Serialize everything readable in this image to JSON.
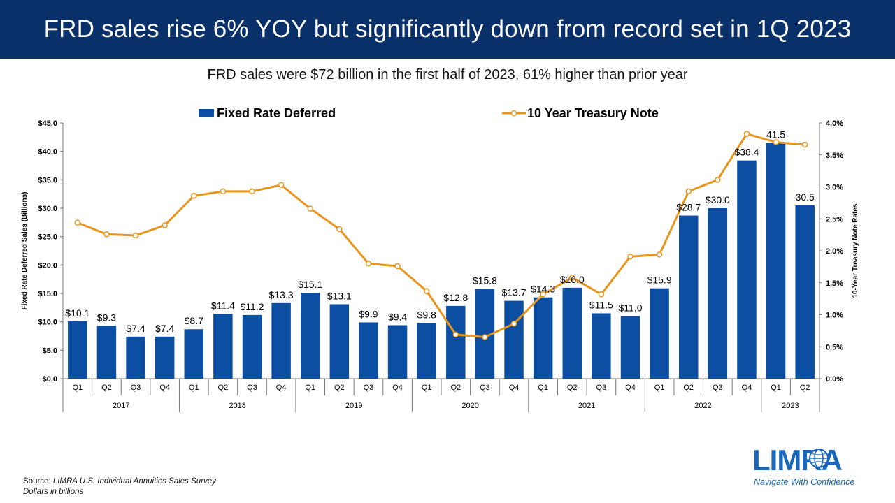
{
  "banner_title": "FRD sales rise 6% YOY but significantly down from record set in 1Q 2023",
  "subtitle": "FRD sales were $72 billion in the first half of 2023, 61% higher than prior year",
  "source": {
    "prefix": "Source: ",
    "name": "LIMRA U.S. Individual Annuities Sales Survey",
    "note": "Dollars in billions"
  },
  "logo": {
    "wordmark": "LIMRA",
    "tagline": "Navigate With Confidence"
  },
  "colors": {
    "banner": "#0a3069",
    "bar": "#0b4ea2",
    "line": "#e8951e",
    "logo": "#1a66b8"
  },
  "chart_data": {
    "type": "bar",
    "title": "",
    "ylabel": "Fixed Rate Deferred Sales (Billions)",
    "y2label": "10-Year Treasury Note Rates",
    "ylim": [
      0,
      45
    ],
    "y2lim": [
      0,
      4
    ],
    "y_ticks": [
      "$0.0",
      "$5.0",
      "$10.0",
      "$15.0",
      "$20.0",
      "$25.0",
      "$30.0",
      "$35.0",
      "$40.0",
      "$45.0"
    ],
    "y2_ticks": [
      "0.0%",
      "0.5%",
      "1.0%",
      "1.5%",
      "2.0%",
      "2.5%",
      "3.0%",
      "3.5%",
      "4.0%"
    ],
    "legend_position": "top",
    "grid": false,
    "quarters": [
      "Q1",
      "Q2",
      "Q3",
      "Q4",
      "Q1",
      "Q2",
      "Q3",
      "Q4",
      "Q1",
      "Q2",
      "Q3",
      "Q4",
      "Q1",
      "Q2",
      "Q3",
      "Q4",
      "Q1",
      "Q2",
      "Q3",
      "Q4",
      "Q1",
      "Q2",
      "Q3",
      "Q4",
      "Q1",
      "Q2"
    ],
    "years": [
      {
        "label": "2017",
        "count": 4
      },
      {
        "label": "2018",
        "count": 4
      },
      {
        "label": "2019",
        "count": 4
      },
      {
        "label": "2020",
        "count": 4
      },
      {
        "label": "2021",
        "count": 4
      },
      {
        "label": "2022",
        "count": 4
      },
      {
        "label": "2023",
        "count": 2
      }
    ],
    "series": [
      {
        "name": "Fixed Rate Deferred",
        "type": "bar",
        "values": [
          10.1,
          9.3,
          7.4,
          7.4,
          8.7,
          11.4,
          11.2,
          13.3,
          15.1,
          13.1,
          9.9,
          9.4,
          9.8,
          12.8,
          15.8,
          13.7,
          14.3,
          16.0,
          11.5,
          11.0,
          15.9,
          28.7,
          30.0,
          38.4,
          41.5,
          30.5
        ],
        "labels": [
          "$10.1",
          "$9.3",
          "$7.4",
          "$7.4",
          "$8.7",
          "$11.4",
          "$11.2",
          "$13.3",
          "$15.1",
          "$13.1",
          "$9.9",
          "$9.4",
          "$9.8",
          "$12.8",
          "$15.8",
          "$13.7",
          "$14.3",
          "$16.0",
          "$11.5",
          "$11.0",
          "$15.9",
          "$28.7",
          "$30.0",
          "$38.4",
          "41.5",
          "30.5"
        ]
      },
      {
        "name": "10 Year Treasury Note",
        "type": "line",
        "axis": "right",
        "values": [
          2.44,
          2.26,
          2.24,
          2.4,
          2.86,
          2.93,
          2.93,
          3.03,
          2.66,
          2.34,
          1.8,
          1.76,
          1.37,
          0.69,
          0.65,
          0.86,
          1.32,
          1.58,
          1.32,
          1.91,
          1.94,
          2.93,
          3.11,
          3.83,
          3.7,
          3.66
        ]
      }
    ]
  }
}
